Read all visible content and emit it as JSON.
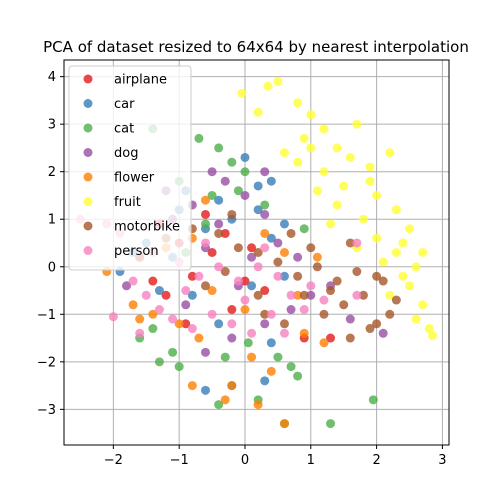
{
  "chart_data": {
    "type": "scatter",
    "title": "PCA of dataset resized to 64x64 by nearest interpolation",
    "xlabel": "",
    "ylabel": "",
    "xlim": [
      -2.75,
      3.1
    ],
    "ylim": [
      -3.75,
      4.35
    ],
    "xticks": [
      -2,
      -1,
      0,
      1,
      2,
      3
    ],
    "yticks": [
      -3,
      -2,
      -1,
      0,
      1,
      2,
      3,
      4
    ],
    "grid": true,
    "legend_position": "top-left",
    "series": [
      {
        "name": "airplane",
        "color": "#e41a1c",
        "points": [
          [
            -1.3,
            0.9
          ],
          [
            -1.0,
            0.5
          ],
          [
            -0.8,
            -0.2
          ],
          [
            -1.2,
            -0.6
          ],
          [
            -0.5,
            0.3
          ],
          [
            -0.2,
            -0.9
          ],
          [
            0.1,
            0.4
          ],
          [
            -1.6,
            0.2
          ],
          [
            -0.9,
            -1.2
          ],
          [
            0.3,
            -0.5
          ],
          [
            -0.6,
            1.1
          ],
          [
            -1.4,
            -0.3
          ],
          [
            0.9,
            -1.5
          ],
          [
            1.3,
            -1.5
          ],
          [
            -0.3,
            0.7
          ],
          [
            0.0,
            -0.3
          ]
        ]
      },
      {
        "name": "car",
        "color": "#377eb8",
        "points": [
          [
            -1.9,
            -0.1
          ],
          [
            -1.5,
            0.5
          ],
          [
            -1.0,
            1.2
          ],
          [
            -0.6,
            0.8
          ],
          [
            -0.2,
            1.0
          ],
          [
            0.2,
            1.2
          ],
          [
            0.4,
            0.6
          ],
          [
            0.6,
            -0.2
          ],
          [
            -0.4,
            -1.2
          ],
          [
            -0.6,
            -2.6
          ],
          [
            0.3,
            -2.4
          ],
          [
            -0.2,
            -2.5
          ],
          [
            -0.8,
            -0.6
          ],
          [
            0.1,
            -0.4
          ],
          [
            -1.3,
            -0.5
          ],
          [
            -1.1,
            0.2
          ],
          [
            0.0,
            2.3
          ],
          [
            0.2,
            1.7
          ],
          [
            0.4,
            1.8
          ],
          [
            -0.4,
            1.4
          ],
          [
            0.6,
            0.9
          ],
          [
            -1.7,
            0.3
          ],
          [
            0.4,
            -1.6
          ],
          [
            -0.9,
            1.6
          ]
        ]
      },
      {
        "name": "cat",
        "color": "#4daf4a",
        "points": [
          [
            -1.4,
            2.9
          ],
          [
            -0.7,
            2.7
          ],
          [
            -0.4,
            2.5
          ],
          [
            -0.2,
            2.2
          ],
          [
            0.0,
            2.0
          ],
          [
            -1.0,
            1.8
          ],
          [
            -0.5,
            1.5
          ],
          [
            -1.4,
            -1.3
          ],
          [
            -1.1,
            -1.8
          ],
          [
            -1.0,
            -2.1
          ],
          [
            -1.3,
            -2.0
          ],
          [
            0.5,
            -1.9
          ],
          [
            0.8,
            -2.3
          ],
          [
            0.6,
            -3.3
          ],
          [
            1.3,
            -3.3
          ],
          [
            1.95,
            -2.8
          ],
          [
            -0.3,
            -1.9
          ],
          [
            0.2,
            -2.8
          ],
          [
            -1.6,
            -1.5
          ],
          [
            0.9,
            0.8
          ],
          [
            -0.6,
            0.9
          ],
          [
            -0.9,
            0.3
          ],
          [
            0.3,
            1.3
          ],
          [
            -0.1,
            1.6
          ],
          [
            0.7,
            -2.1
          ],
          [
            0.05,
            -1.6
          ],
          [
            -0.4,
            -2.9
          ]
        ]
      },
      {
        "name": "dog",
        "color": "#984ea3",
        "points": [
          [
            -1.2,
            1.6
          ],
          [
            -0.8,
            1.3
          ],
          [
            -0.3,
            1.8
          ],
          [
            0.0,
            1.5
          ],
          [
            0.3,
            1.1
          ],
          [
            -0.6,
            0.4
          ],
          [
            -0.9,
            -0.8
          ],
          [
            -0.6,
            -1.8
          ],
          [
            -0.2,
            -1.5
          ],
          [
            0.3,
            -1.2
          ],
          [
            0.7,
            -0.9
          ],
          [
            1.0,
            -0.6
          ],
          [
            1.3,
            -0.4
          ],
          [
            2.1,
            -1.4
          ],
          [
            1.6,
            -1.1
          ],
          [
            -1.8,
            -0.4
          ],
          [
            -0.4,
            0.9
          ],
          [
            0.1,
            0.2
          ],
          [
            0.5,
            0.5
          ],
          [
            -1.1,
            1.0
          ],
          [
            0.8,
            0.2
          ],
          [
            -0.1,
            -0.4
          ],
          [
            0.3,
            2.0
          ],
          [
            -0.5,
            2.0
          ]
        ]
      },
      {
        "name": "flower",
        "color": "#ff7f00",
        "points": [
          [
            -2.1,
            -0.1
          ],
          [
            -1.7,
            -0.8
          ],
          [
            -1.6,
            -1.1
          ],
          [
            -1.4,
            -1.0
          ],
          [
            -1.0,
            -1.2
          ],
          [
            -0.8,
            -2.5
          ],
          [
            -0.2,
            -2.5
          ],
          [
            0.2,
            -2.9
          ],
          [
            0.4,
            -2.2
          ],
          [
            0.6,
            -3.3
          ],
          [
            0.9,
            -1.4
          ],
          [
            1.2,
            -1.6
          ],
          [
            -0.3,
            -2.8
          ],
          [
            -0.6,
            1.4
          ],
          [
            -0.8,
            0.6
          ],
          [
            -0.5,
            -0.5
          ],
          [
            0.0,
            -0.9
          ],
          [
            0.3,
            0.7
          ],
          [
            0.6,
            0.3
          ],
          [
            -1.2,
            0.4
          ],
          [
            -0.7,
            -1.5
          ],
          [
            0.1,
            -1.9
          ],
          [
            0.8,
            -0.6
          ],
          [
            1.1,
            0.2
          ]
        ]
      },
      {
        "name": "fruit",
        "color": "#ffff33",
        "points": [
          [
            -0.05,
            3.65
          ],
          [
            0.2,
            3.25
          ],
          [
            0.35,
            3.8
          ],
          [
            0.5,
            3.9
          ],
          [
            0.8,
            3.45
          ],
          [
            1.0,
            3.2
          ],
          [
            1.2,
            2.9
          ],
          [
            0.9,
            2.7
          ],
          [
            1.4,
            2.5
          ],
          [
            1.7,
            3.0
          ],
          [
            1.6,
            2.3
          ],
          [
            1.9,
            2.1
          ],
          [
            2.2,
            2.4
          ],
          [
            1.2,
            2.0
          ],
          [
            1.5,
            1.7
          ],
          [
            2.0,
            1.5
          ],
          [
            2.3,
            1.2
          ],
          [
            2.5,
            0.8
          ],
          [
            2.3,
            0.3
          ],
          [
            2.6,
            0.0
          ],
          [
            2.5,
            -0.4
          ],
          [
            2.7,
            -0.8
          ],
          [
            2.8,
            -1.3
          ],
          [
            2.85,
            -1.45
          ],
          [
            2.0,
            0.6
          ],
          [
            1.8,
            1.0
          ],
          [
            1.4,
            1.3
          ],
          [
            1.1,
            1.6
          ],
          [
            0.8,
            2.2
          ],
          [
            2.1,
            0.1
          ],
          [
            2.4,
            -0.2
          ],
          [
            1.7,
            0.4
          ],
          [
            2.2,
            -0.6
          ],
          [
            2.6,
            -1.1
          ],
          [
            1.3,
            0.9
          ],
          [
            1.9,
            1.8
          ],
          [
            0.6,
            2.4
          ],
          [
            1.0,
            2.5
          ],
          [
            2.4,
            0.5
          ],
          [
            2.7,
            0.3
          ]
        ]
      },
      {
        "name": "motorbike",
        "color": "#a65628",
        "points": [
          [
            -1.6,
            0.2
          ],
          [
            -1.2,
            0.6
          ],
          [
            -0.8,
            0.8
          ],
          [
            -0.4,
            0.7
          ],
          [
            -0.1,
            0.4
          ],
          [
            0.2,
            0.3
          ],
          [
            0.5,
            0.1
          ],
          [
            0.8,
            -0.2
          ],
          [
            1.1,
            0.0
          ],
          [
            1.4,
            -0.3
          ],
          [
            1.7,
            -0.1
          ],
          [
            2.0,
            -0.2
          ],
          [
            2.3,
            -0.7
          ],
          [
            2.2,
            -1.0
          ],
          [
            1.9,
            -1.3
          ],
          [
            1.5,
            -0.8
          ],
          [
            1.2,
            -1.0
          ],
          [
            0.9,
            -0.6
          ],
          [
            0.6,
            -1.2
          ],
          [
            0.2,
            -0.6
          ],
          [
            -0.3,
            -0.1
          ],
          [
            -0.6,
            -0.4
          ],
          [
            1.0,
            0.4
          ],
          [
            1.6,
            0.5
          ],
          [
            0.7,
            0.7
          ],
          [
            1.8,
            -0.6
          ],
          [
            2.1,
            -0.3
          ],
          [
            -0.2,
            1.1
          ],
          [
            0.3,
            -1.0
          ],
          [
            1.3,
            -0.5
          ],
          [
            2.0,
            -1.2
          ],
          [
            1.6,
            -1.5
          ]
        ]
      },
      {
        "name": "person",
        "color": "#f781bf",
        "points": [
          [
            -2.5,
            1.0
          ],
          [
            -2.1,
            0.9
          ],
          [
            -1.9,
            0.7
          ],
          [
            -1.7,
            -0.3
          ],
          [
            -1.5,
            -0.6
          ],
          [
            -1.3,
            -0.9
          ],
          [
            -1.6,
            -1.4
          ],
          [
            -1.1,
            -1.1
          ],
          [
            -0.8,
            -1.3
          ],
          [
            -0.5,
            -1.0
          ],
          [
            -0.2,
            -1.2
          ],
          [
            0.1,
            -1.4
          ],
          [
            0.4,
            -1.0
          ],
          [
            0.7,
            -0.6
          ],
          [
            1.0,
            -0.4
          ],
          [
            -1.0,
            0.1
          ],
          [
            -0.7,
            -0.2
          ],
          [
            -0.4,
            0.0
          ],
          [
            -0.1,
            -0.3
          ],
          [
            0.2,
            0.0
          ],
          [
            0.5,
            -0.2
          ],
          [
            0.9,
            -0.9
          ],
          [
            1.2,
            -0.7
          ],
          [
            -2.0,
            -1.05
          ],
          [
            -1.4,
            0.3
          ],
          [
            -0.6,
            0.5
          ],
          [
            0.3,
            0.4
          ],
          [
            1.7,
            0.5
          ],
          [
            1.7,
            -0.6
          ],
          [
            0.0,
            -0.7
          ],
          [
            -0.9,
            -0.5
          ],
          [
            0.6,
            -1.4
          ]
        ]
      }
    ]
  }
}
